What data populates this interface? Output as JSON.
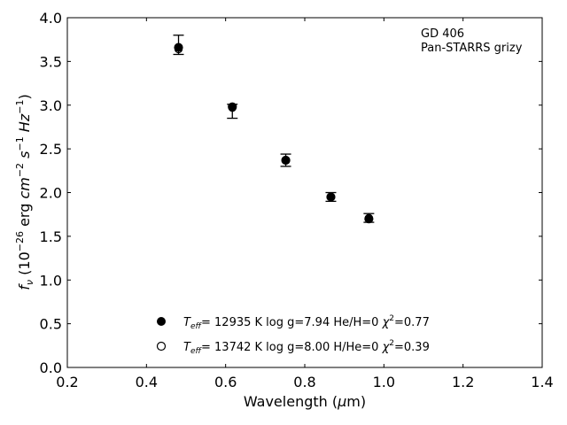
{
  "chart_data": {
    "type": "scatter",
    "xlabel": "Wavelength (μm)",
    "ylabel": "f_ν (10^-26 erg cm^-2 s^-1 Hz^-1)",
    "xlim": [
      0.2,
      1.4
    ],
    "ylim": [
      0.0,
      4.0
    ],
    "x_ticks": [
      "0.2",
      "0.4",
      "0.6",
      "0.8",
      "1.0",
      "1.2",
      "1.4"
    ],
    "y_ticks": [
      "0.0",
      "0.5",
      "1.0",
      "1.5",
      "2.0",
      "2.5",
      "3.0",
      "3.5",
      "4.0"
    ],
    "grid": false,
    "annotation": [
      "GD 406",
      "Pan-STARRS grizy"
    ],
    "legend_position": "bottom-center",
    "series": [
      {
        "name": "T_eff= 12935 K  log g=7.94  He/H=0  χ²=0.77",
        "marker": "filled-circle",
        "color": "#000000",
        "points": [
          {
            "x": 0.481,
            "y": 3.66
          },
          {
            "x": 0.617,
            "y": 2.98
          },
          {
            "x": 0.752,
            "y": 2.37
          },
          {
            "x": 0.866,
            "y": 1.95
          },
          {
            "x": 0.962,
            "y": 1.7
          }
        ]
      },
      {
        "name": "T_eff= 13742 K  log g=8.00  H/He=0  χ²=0.39",
        "marker": "open-circle",
        "color": "#000000",
        "points": [
          {
            "x": 0.481,
            "y": 3.64
          },
          {
            "x": 0.617,
            "y": 2.97
          },
          {
            "x": 0.752,
            "y": 2.37
          },
          {
            "x": 0.866,
            "y": 1.95
          },
          {
            "x": 0.962,
            "y": 1.71
          }
        ]
      }
    ],
    "observed": {
      "points": [
        {
          "x": 0.481,
          "y": 3.68,
          "err_low": 0.1,
          "err_high": 0.12
        },
        {
          "x": 0.617,
          "y": 2.94,
          "err_low": 0.09,
          "err_high": 0.07
        },
        {
          "x": 0.752,
          "y": 2.37,
          "err_low": 0.07,
          "err_high": 0.07
        },
        {
          "x": 0.866,
          "y": 1.95,
          "err_low": 0.05,
          "err_high": 0.05
        },
        {
          "x": 0.962,
          "y": 1.7,
          "err_low": 0.04,
          "err_high": 0.06
        }
      ]
    }
  }
}
